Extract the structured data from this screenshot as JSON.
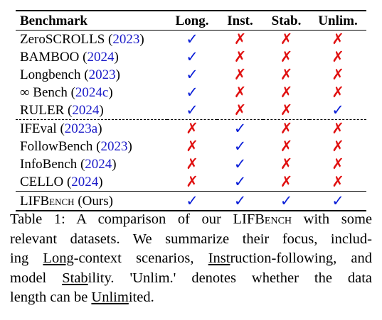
{
  "table": {
    "headers": [
      "Benchmark",
      "Long.",
      "Inst.",
      "Stab.",
      "Unlim."
    ],
    "rows": [
      {
        "name": "ZeroSCROLLS",
        "year": "2023",
        "long": "✓",
        "inst": "✗",
        "stab": "✗",
        "unlim": "✗"
      },
      {
        "name": "BAMBOO",
        "year": "2024",
        "long": "✓",
        "inst": "✗",
        "stab": "✗",
        "unlim": "✗"
      },
      {
        "name": "Longbench",
        "year": "2023",
        "long": "✓",
        "inst": "✗",
        "stab": "✗",
        "unlim": "✗"
      },
      {
        "name": "∞ Bench",
        "year": "2024c",
        "long": "✓",
        "inst": "✗",
        "stab": "✗",
        "unlim": "✗"
      },
      {
        "name": "RULER",
        "year": "2024",
        "long": "✓",
        "inst": "✗",
        "stab": "✗",
        "unlim": "✓"
      },
      {
        "name": "IFEval",
        "year": "2023a",
        "long": "✗",
        "inst": "✓",
        "stab": "✗",
        "unlim": "✗"
      },
      {
        "name": "FollowBench",
        "year": "2023",
        "long": "✗",
        "inst": "✓",
        "stab": "✗",
        "unlim": "✗"
      },
      {
        "name": "InfoBench",
        "year": "2024",
        "long": "✗",
        "inst": "✓",
        "stab": "✗",
        "unlim": "✗"
      },
      {
        "name": "CELLO",
        "year": "2024",
        "long": "✗",
        "inst": "✓",
        "stab": "✗",
        "unlim": "✗"
      }
    ],
    "ours": {
      "name_prefix": "LIF",
      "name_sc": "Bench",
      "suffix": "(Ours)",
      "long": "✓",
      "inst": "✓",
      "stab": "✓",
      "unlim": "✓"
    }
  },
  "caption": {
    "l1": "Table 1: A comparison of our LIF",
    "l1_sc": "Bench",
    "l1_end": "with some",
    "l2": "relevant datasets. We summarize their focus, includ-",
    "l3_a": "ing",
    "l3_u1": "Long",
    "l3_b": "-context scenarios,",
    "l3_u2": "Inst",
    "l3_c": "ruction-following, and",
    "l4_a": "model",
    "l4_u": "Stab",
    "l4_b": "ility. 'Unlim.' denotes whether the data",
    "l5_a": "length can be",
    "l5_u": "Unlim",
    "l5_b": "ited."
  }
}
